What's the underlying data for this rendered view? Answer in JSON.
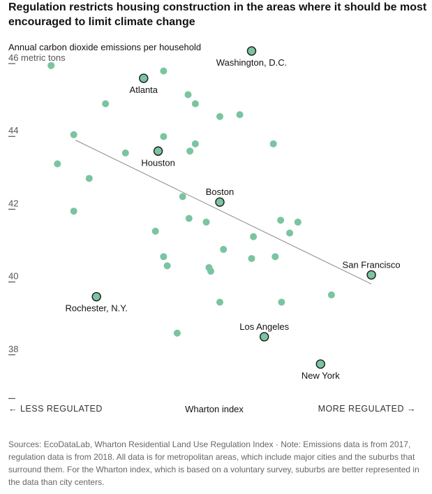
{
  "title": "Regulation restricts housing construction in the areas where it should be most encouraged to limit climate change",
  "source": "Sources: EcoDataLab, Wharton Residential Land Use Regulation Index · Note: Emissions data is from 2017, regulation data is from 2018. All data is for metropolitan areas, which include major cities and the suburbs that surround them. For the Wharton index, which is based on a voluntary survey, suburbs are better represented in the data than city centers.",
  "colors": {
    "dot": "#7ac4a1",
    "dot_stroke": "#1a1a1a",
    "trend": "#888888"
  },
  "chart_data": {
    "type": "scatter",
    "ylabel": "Annual carbon dioxide emissions per household",
    "yunit": "metric tons",
    "ylim": [
      36.7,
      46.5
    ],
    "xlim": [
      -1.2,
      2.8
    ],
    "y_ticks": [
      {
        "value": 46,
        "label": "46"
      },
      {
        "value": 44,
        "label": "44"
      },
      {
        "value": 42,
        "label": "42"
      },
      {
        "value": 40,
        "label": "40"
      },
      {
        "value": 38,
        "label": "38"
      },
      {
        "value": 36.8,
        "label": ""
      }
    ],
    "xlabel": "Wharton index",
    "x_left_label": "← LESS REGULATED",
    "x_right_label": "MORE REGULATED →",
    "trend_line": {
      "x": [
        -0.79,
        2.47
      ],
      "y": [
        43.8,
        39.85
      ]
    },
    "highlighted": [
      {
        "name": "Washington, D.C.",
        "x": 1.15,
        "y": 46.25,
        "label_pos": "below"
      },
      {
        "name": "Atlanta",
        "x": -0.04,
        "y": 45.5,
        "label_pos": "below"
      },
      {
        "name": "Houston",
        "x": 0.12,
        "y": 43.5,
        "label_pos": "below"
      },
      {
        "name": "Boston",
        "x": 0.8,
        "y": 42.1,
        "label_pos": "above"
      },
      {
        "name": "San Francisco",
        "x": 2.47,
        "y": 40.1,
        "label_pos": "above"
      },
      {
        "name": "Rochester, N.Y.",
        "x": -0.56,
        "y": 39.5,
        "label_pos": "below"
      },
      {
        "name": "Los Angeles",
        "x": 1.29,
        "y": 38.4,
        "label_pos": "above"
      },
      {
        "name": "New York",
        "x": 1.91,
        "y": 37.65,
        "label_pos": "below"
      }
    ],
    "points": [
      {
        "x": -1.06,
        "y": 45.85
      },
      {
        "x": 0.18,
        "y": 45.7
      },
      {
        "x": -0.46,
        "y": 44.8
      },
      {
        "x": 0.45,
        "y": 45.05
      },
      {
        "x": 0.53,
        "y": 44.8
      },
      {
        "x": 0.8,
        "y": 44.45
      },
      {
        "x": 1.02,
        "y": 44.5
      },
      {
        "x": -0.81,
        "y": 43.95
      },
      {
        "x": 0.18,
        "y": 43.9
      },
      {
        "x": 0.53,
        "y": 43.7
      },
      {
        "x": 0.47,
        "y": 43.5
      },
      {
        "x": 1.39,
        "y": 43.7
      },
      {
        "x": -0.99,
        "y": 43.15
      },
      {
        "x": -0.24,
        "y": 43.45
      },
      {
        "x": -0.64,
        "y": 42.75
      },
      {
        "x": 0.39,
        "y": 42.25
      },
      {
        "x": -0.81,
        "y": 41.85
      },
      {
        "x": 0.46,
        "y": 41.65
      },
      {
        "x": 0.65,
        "y": 41.55
      },
      {
        "x": 1.47,
        "y": 41.6
      },
      {
        "x": 1.66,
        "y": 41.55
      },
      {
        "x": 1.57,
        "y": 41.25
      },
      {
        "x": 0.09,
        "y": 41.3
      },
      {
        "x": 1.17,
        "y": 41.15
      },
      {
        "x": 0.84,
        "y": 40.8
      },
      {
        "x": 0.18,
        "y": 40.6
      },
      {
        "x": 1.15,
        "y": 40.55
      },
      {
        "x": 1.41,
        "y": 40.6
      },
      {
        "x": 0.22,
        "y": 40.35
      },
      {
        "x": 0.68,
        "y": 40.3
      },
      {
        "x": 0.7,
        "y": 40.2
      },
      {
        "x": 2.03,
        "y": 39.55
      },
      {
        "x": 0.8,
        "y": 39.35
      },
      {
        "x": 1.48,
        "y": 39.35
      },
      {
        "x": 0.33,
        "y": 38.5
      }
    ]
  }
}
